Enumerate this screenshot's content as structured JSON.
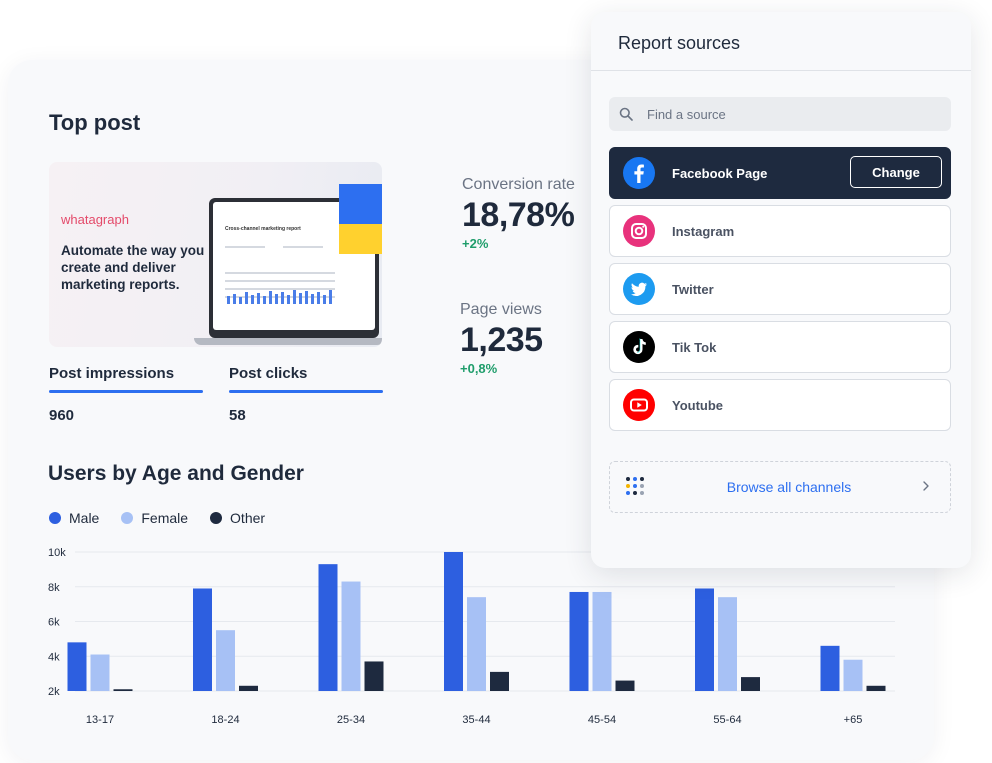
{
  "top_post": {
    "title": "Top post",
    "promo": {
      "brand": "whatagraph",
      "headline": "Automate the way you create and deliver marketing  reports.",
      "screen_title": "Cross-channel marketing report"
    },
    "metrics": [
      {
        "label": "Post impressions",
        "value": "960"
      },
      {
        "label": "Post clicks",
        "value": "58"
      }
    ]
  },
  "kpis": [
    {
      "label": "Conversion rate",
      "value": "18,78%",
      "delta": "+2%"
    },
    {
      "label": "Page views",
      "value": "1,235",
      "delta": "+0,8%"
    }
  ],
  "users_section": {
    "title": "Users by Age and Gender"
  },
  "chart_data": {
    "type": "bar",
    "title": "Users by Age and Gender",
    "categories": [
      "13-17",
      "18-24",
      "25-34",
      "35-44",
      "45-54",
      "55-64",
      "+65"
    ],
    "series": [
      {
        "name": "Male",
        "color": "#2d5fe0",
        "values": [
          4.8,
          7.9,
          9.3,
          10.0,
          7.7,
          7.9,
          4.6
        ]
      },
      {
        "name": "Female",
        "color": "#a7c1f5",
        "values": [
          4.1,
          5.5,
          8.3,
          7.4,
          7.7,
          7.4,
          3.8
        ]
      },
      {
        "name": "Other",
        "color": "#1e2a3f",
        "values": [
          2.1,
          2.3,
          3.7,
          3.1,
          2.6,
          2.8,
          2.3
        ]
      }
    ],
    "y_ticks": [
      "10k",
      "8k",
      "6k",
      "4k",
      "2k"
    ],
    "ylim": [
      2,
      10
    ],
    "unit": "k",
    "grid": true,
    "legend_position": "top-left"
  },
  "report_sources": {
    "title": "Report sources",
    "search_placeholder": "Find a source",
    "change_label": "Change",
    "sources": [
      {
        "label": "Facebook Page",
        "icon": "facebook-icon",
        "active": true
      },
      {
        "label": "Instagram",
        "icon": "instagram-icon",
        "active": false
      },
      {
        "label": "Twitter",
        "icon": "twitter-icon",
        "active": false
      },
      {
        "label": "Tik Tok",
        "icon": "tiktok-icon",
        "active": false
      },
      {
        "label": "Youtube",
        "icon": "youtube-icon",
        "active": false
      }
    ],
    "browse_label": "Browse all channels"
  },
  "colors": {
    "accent": "#2d6ff0",
    "positive": "#1f9d6b",
    "dark": "#1e2a3f"
  }
}
